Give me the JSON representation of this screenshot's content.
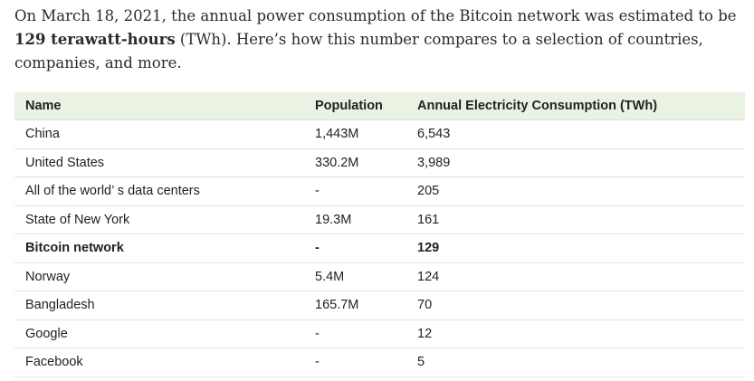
{
  "intro": {
    "part1": "On March 18, 2021, the annual power consumption of the Bitcoin network was estimated to be ",
    "bold": "129 terawatt-hours",
    "part2": " (TWh). Here’s how this number compares to a selection of countries, companies, and more."
  },
  "table": {
    "headers": {
      "name": "Name",
      "population": "Population",
      "consumption": "Annual Electricity Consumption (TWh)"
    },
    "rows": [
      {
        "name": "China",
        "population": "1,443M",
        "consumption": "6,543"
      },
      {
        "name": "United States",
        "population": "330.2M",
        "consumption": "3,989"
      },
      {
        "name": "All of the world’ s data centers",
        "population": "-",
        "consumption": "205"
      },
      {
        "name": "State of New York",
        "population": "19.3M",
        "consumption": "161"
      },
      {
        "name": "Bitcoin network",
        "population": "-",
        "consumption": "129"
      },
      {
        "name": "Norway",
        "population": "5.4M",
        "consumption": "124"
      },
      {
        "name": "Bangladesh",
        "population": "165.7M",
        "consumption": "70"
      },
      {
        "name": "Google",
        "population": "-",
        "consumption": "12"
      },
      {
        "name": "Facebook",
        "population": "-",
        "consumption": "5"
      }
    ]
  }
}
